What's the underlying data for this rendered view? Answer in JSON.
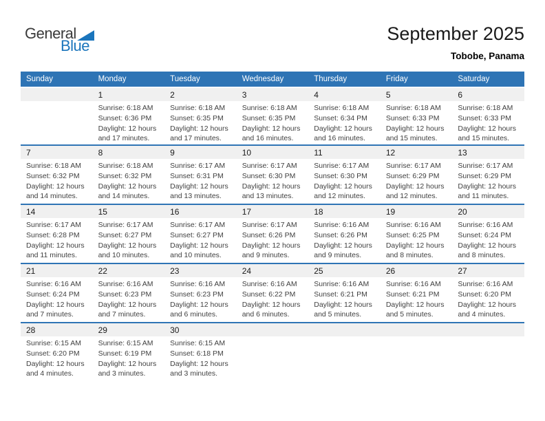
{
  "logo": {
    "part1": "General",
    "part2": "Blue"
  },
  "header": {
    "title": "September 2025",
    "location": "Tobobe, Panama"
  },
  "labels": {
    "sunrise": "Sunrise:",
    "sunset": "Sunset:",
    "daylight": "Daylight:"
  },
  "colors": {
    "accent": "#2E74B5",
    "band_gray": "#F0F0F0",
    "logo_blue": "#1B75BC"
  },
  "calendar": {
    "weekdays": [
      "Sunday",
      "Monday",
      "Tuesday",
      "Wednesday",
      "Thursday",
      "Friday",
      "Saturday"
    ],
    "weeks": [
      [
        null,
        {
          "day": "1",
          "sunrise": "6:18 AM",
          "sunset": "6:36 PM",
          "daylight_a": "12 hours",
          "daylight_b": "and 17 minutes."
        },
        {
          "day": "2",
          "sunrise": "6:18 AM",
          "sunset": "6:35 PM",
          "daylight_a": "12 hours",
          "daylight_b": "and 17 minutes."
        },
        {
          "day": "3",
          "sunrise": "6:18 AM",
          "sunset": "6:35 PM",
          "daylight_a": "12 hours",
          "daylight_b": "and 16 minutes."
        },
        {
          "day": "4",
          "sunrise": "6:18 AM",
          "sunset": "6:34 PM",
          "daylight_a": "12 hours",
          "daylight_b": "and 16 minutes."
        },
        {
          "day": "5",
          "sunrise": "6:18 AM",
          "sunset": "6:33 PM",
          "daylight_a": "12 hours",
          "daylight_b": "and 15 minutes."
        },
        {
          "day": "6",
          "sunrise": "6:18 AM",
          "sunset": "6:33 PM",
          "daylight_a": "12 hours",
          "daylight_b": "and 15 minutes."
        }
      ],
      [
        {
          "day": "7",
          "sunrise": "6:18 AM",
          "sunset": "6:32 PM",
          "daylight_a": "12 hours",
          "daylight_b": "and 14 minutes."
        },
        {
          "day": "8",
          "sunrise": "6:18 AM",
          "sunset": "6:32 PM",
          "daylight_a": "12 hours",
          "daylight_b": "and 14 minutes."
        },
        {
          "day": "9",
          "sunrise": "6:17 AM",
          "sunset": "6:31 PM",
          "daylight_a": "12 hours",
          "daylight_b": "and 13 minutes."
        },
        {
          "day": "10",
          "sunrise": "6:17 AM",
          "sunset": "6:30 PM",
          "daylight_a": "12 hours",
          "daylight_b": "and 13 minutes."
        },
        {
          "day": "11",
          "sunrise": "6:17 AM",
          "sunset": "6:30 PM",
          "daylight_a": "12 hours",
          "daylight_b": "and 12 minutes."
        },
        {
          "day": "12",
          "sunrise": "6:17 AM",
          "sunset": "6:29 PM",
          "daylight_a": "12 hours",
          "daylight_b": "and 12 minutes."
        },
        {
          "day": "13",
          "sunrise": "6:17 AM",
          "sunset": "6:29 PM",
          "daylight_a": "12 hours",
          "daylight_b": "and 11 minutes."
        }
      ],
      [
        {
          "day": "14",
          "sunrise": "6:17 AM",
          "sunset": "6:28 PM",
          "daylight_a": "12 hours",
          "daylight_b": "and 11 minutes."
        },
        {
          "day": "15",
          "sunrise": "6:17 AM",
          "sunset": "6:27 PM",
          "daylight_a": "12 hours",
          "daylight_b": "and 10 minutes."
        },
        {
          "day": "16",
          "sunrise": "6:17 AM",
          "sunset": "6:27 PM",
          "daylight_a": "12 hours",
          "daylight_b": "and 10 minutes."
        },
        {
          "day": "17",
          "sunrise": "6:17 AM",
          "sunset": "6:26 PM",
          "daylight_a": "12 hours",
          "daylight_b": "and 9 minutes."
        },
        {
          "day": "18",
          "sunrise": "6:16 AM",
          "sunset": "6:26 PM",
          "daylight_a": "12 hours",
          "daylight_b": "and 9 minutes."
        },
        {
          "day": "19",
          "sunrise": "6:16 AM",
          "sunset": "6:25 PM",
          "daylight_a": "12 hours",
          "daylight_b": "and 8 minutes."
        },
        {
          "day": "20",
          "sunrise": "6:16 AM",
          "sunset": "6:24 PM",
          "daylight_a": "12 hours",
          "daylight_b": "and 8 minutes."
        }
      ],
      [
        {
          "day": "21",
          "sunrise": "6:16 AM",
          "sunset": "6:24 PM",
          "daylight_a": "12 hours",
          "daylight_b": "and 7 minutes."
        },
        {
          "day": "22",
          "sunrise": "6:16 AM",
          "sunset": "6:23 PM",
          "daylight_a": "12 hours",
          "daylight_b": "and 7 minutes."
        },
        {
          "day": "23",
          "sunrise": "6:16 AM",
          "sunset": "6:23 PM",
          "daylight_a": "12 hours",
          "daylight_b": "and 6 minutes."
        },
        {
          "day": "24",
          "sunrise": "6:16 AM",
          "sunset": "6:22 PM",
          "daylight_a": "12 hours",
          "daylight_b": "and 6 minutes."
        },
        {
          "day": "25",
          "sunrise": "6:16 AM",
          "sunset": "6:21 PM",
          "daylight_a": "12 hours",
          "daylight_b": "and 5 minutes."
        },
        {
          "day": "26",
          "sunrise": "6:16 AM",
          "sunset": "6:21 PM",
          "daylight_a": "12 hours",
          "daylight_b": "and 5 minutes."
        },
        {
          "day": "27",
          "sunrise": "6:16 AM",
          "sunset": "6:20 PM",
          "daylight_a": "12 hours",
          "daylight_b": "and 4 minutes."
        }
      ],
      [
        {
          "day": "28",
          "sunrise": "6:15 AM",
          "sunset": "6:20 PM",
          "daylight_a": "12 hours",
          "daylight_b": "and 4 minutes."
        },
        {
          "day": "29",
          "sunrise": "6:15 AM",
          "sunset": "6:19 PM",
          "daylight_a": "12 hours",
          "daylight_b": "and 3 minutes."
        },
        {
          "day": "30",
          "sunrise": "6:15 AM",
          "sunset": "6:18 PM",
          "daylight_a": "12 hours",
          "daylight_b": "and 3 minutes."
        },
        null,
        null,
        null,
        null
      ]
    ]
  }
}
